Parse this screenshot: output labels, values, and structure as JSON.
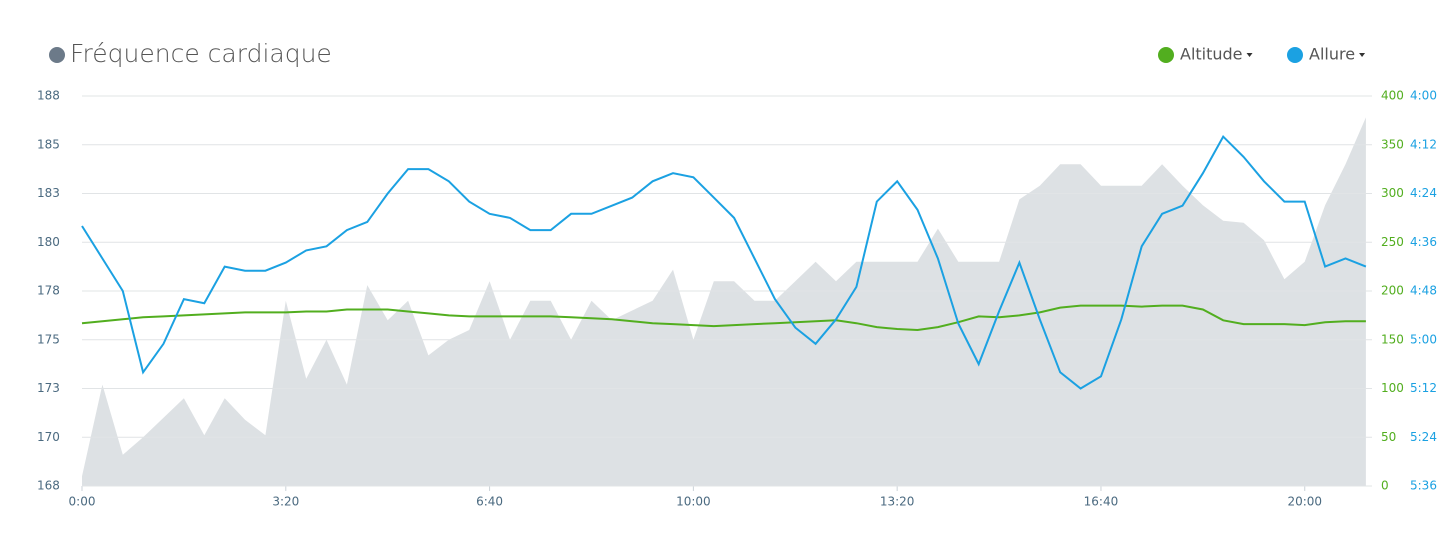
{
  "chart_data": {
    "type": "line",
    "title": "Fréquence cardiaque",
    "title_color": "#6c7a89",
    "x": [
      0,
      20,
      40,
      60,
      80,
      100,
      120,
      140,
      160,
      180,
      200,
      220,
      240,
      260,
      280,
      300,
      320,
      340,
      360,
      380,
      400,
      420,
      440,
      460,
      480,
      500,
      520,
      540,
      560,
      580,
      600,
      620,
      640,
      660,
      680,
      700,
      720,
      740,
      760,
      780,
      800,
      820,
      840,
      860,
      880,
      900,
      920,
      940,
      960,
      980,
      1000,
      1020,
      1040,
      1060,
      1080,
      1100,
      1120,
      1140,
      1160,
      1180,
      1200,
      1220,
      1240,
      1260
    ],
    "xlim": [
      0,
      1266
    ],
    "xticks": [
      {
        "value": 0,
        "label": "0:00"
      },
      {
        "value": 200,
        "label": "3:20"
      },
      {
        "value": 400,
        "label": "6:40"
      },
      {
        "value": 600,
        "label": "10:00"
      },
      {
        "value": 800,
        "label": "13:20"
      },
      {
        "value": 1000,
        "label": "16:40"
      },
      {
        "value": 1200,
        "label": "20:00"
      }
    ],
    "ylim": [
      168,
      188
    ],
    "yticks": [
      {
        "value": 168,
        "label": "168"
      },
      {
        "value": 170.5,
        "label": "170"
      },
      {
        "value": 173,
        "label": "173"
      },
      {
        "value": 175.5,
        "label": "175"
      },
      {
        "value": 178,
        "label": "178"
      },
      {
        "value": 180.5,
        "label": "180"
      },
      {
        "value": 183,
        "label": "183"
      },
      {
        "value": 185.5,
        "label": "185"
      },
      {
        "value": 188,
        "label": "188"
      }
    ],
    "y2lim": [
      0,
      400
    ],
    "y2ticks": [
      0,
      50,
      100,
      150,
      200,
      250,
      300,
      350,
      400
    ],
    "y3lim": [
      240,
      336
    ],
    "y3_inverted": true,
    "y3ticks": [
      {
        "value": 240,
        "label": "4:00"
      },
      {
        "value": 252,
        "label": "4:12"
      },
      {
        "value": 264,
        "label": "4:24"
      },
      {
        "value": 276,
        "label": "4:36"
      },
      {
        "value": 288,
        "label": "4:48"
      },
      {
        "value": 300,
        "label": "5:00"
      },
      {
        "value": 312,
        "label": "5:12"
      },
      {
        "value": 324,
        "label": "5:24"
      },
      {
        "value": 336,
        "label": "5:36"
      }
    ],
    "grid": true,
    "legend": "top-right",
    "series": [
      {
        "name": "Fréquence cardiaque",
        "kind": "area",
        "axis": "y",
        "color": "#dde1e4",
        "values": [
          168.5,
          173.2,
          169.6,
          170.5,
          171.5,
          172.5,
          170.6,
          172.5,
          171.4,
          170.6,
          177.5,
          173.5,
          175.5,
          173.2,
          178.3,
          176.5,
          177.5,
          174.7,
          175.5,
          176.0,
          178.5,
          175.5,
          177.5,
          177.5,
          175.5,
          177.5,
          176.5,
          177.0,
          177.5,
          179.1,
          175.5,
          178.5,
          178.5,
          177.5,
          177.5,
          178.5,
          179.5,
          178.5,
          179.5,
          179.5,
          179.5,
          179.5,
          181.2,
          179.5,
          179.5,
          179.5,
          182.7,
          183.4,
          184.5,
          184.5,
          183.4,
          183.4,
          183.4,
          184.5,
          183.4,
          182.4,
          181.6,
          181.5,
          180.6,
          178.6,
          179.5,
          182.4,
          184.5,
          186.9
        ]
      },
      {
        "name": "Altitude",
        "kind": "line",
        "axis": "y2",
        "color": "#52ae1f",
        "values": [
          167,
          169,
          171,
          173,
          174,
          175,
          176,
          177,
          178,
          178,
          178,
          179,
          179,
          181,
          181,
          181,
          179,
          177,
          175,
          174,
          174,
          174,
          174,
          174,
          173,
          172,
          171,
          169,
          167,
          166,
          165,
          164,
          165,
          166,
          167,
          168,
          169,
          170,
          167,
          163,
          161,
          160,
          163,
          168,
          174,
          173,
          175,
          178,
          183,
          185,
          185,
          185,
          184,
          185,
          185,
          181,
          170,
          166,
          166,
          166,
          165,
          168,
          169,
          169
        ]
      },
      {
        "name": "Allure",
        "kind": "line",
        "axis": "y3",
        "color": "#1ba1e2",
        "values": [
          272,
          280,
          288,
          308,
          301,
          290,
          291,
          282,
          283,
          283,
          281,
          278,
          277,
          273,
          271,
          264,
          258,
          258,
          261,
          266,
          269,
          270,
          273,
          273,
          269,
          269,
          267,
          265,
          261,
          259,
          260,
          265,
          270,
          280,
          290,
          297,
          301,
          295,
          287,
          266,
          261,
          268,
          280,
          296,
          306,
          293,
          281,
          295,
          308,
          312,
          309,
          295,
          277,
          269,
          267,
          259,
          250,
          255,
          261,
          266,
          266,
          282,
          280,
          282
        ]
      }
    ]
  }
}
